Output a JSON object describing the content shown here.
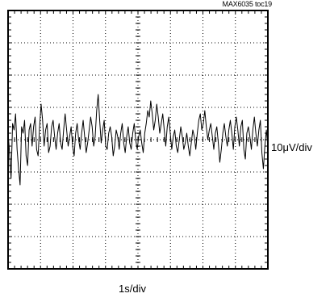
{
  "chart_data": {
    "type": "line",
    "title": "",
    "figure_id": "MAX6035 toc19",
    "xlabel": "1s/div",
    "ylabel": "10μV/div",
    "grid": true,
    "divisions": {
      "x": 8,
      "y": 8
    },
    "xlim": [
      0,
      10
    ],
    "ylim": [
      -40,
      40
    ],
    "colors": {
      "trace": "#000000",
      "grid": "#000000",
      "background": "#ffffff"
    },
    "series": [
      {
        "values": [
          2.0,
          -4.0,
          -12.0,
          5.0,
          3.0,
          8.0,
          -3.0,
          -9.0,
          -14.0,
          4.0,
          2.0,
          6.0,
          -5.0,
          -8.0,
          3.0,
          5.0,
          -2.0,
          4.0,
          7.0,
          -3.0,
          -5.0,
          4.0,
          11.0,
          6.0,
          -2.0,
          3.0,
          5.0,
          -4.0,
          -2.0,
          4.0,
          6.0,
          1.0,
          -3.0,
          2.0,
          5.0,
          -1.0,
          -3.0,
          3.0,
          8.0,
          3.0,
          -2.0,
          1.0,
          4.0,
          -2.0,
          -5.0,
          2.0,
          5.0,
          0.0,
          -3.0,
          2.0,
          6.0,
          1.0,
          -4.0,
          -1.0,
          3.0,
          7.0,
          4.0,
          -2.0,
          1.0,
          9.0,
          14.0,
          6.0,
          -1.0,
          3.0,
          6.0,
          -2.0,
          -3.0,
          2.0,
          4.0,
          1.0,
          -5.0,
          -2.0,
          3.0,
          1.0,
          -3.0,
          2.0,
          5.0,
          -1.0,
          -4.0,
          1.0,
          4.0,
          -1.0,
          -3.0,
          2.0,
          5.0,
          0.0,
          -3.0,
          1.0,
          3.0,
          -1.0,
          -4.0,
          2.0,
          5.0,
          9.0,
          7.0,
          12.0,
          8.0,
          3.0,
          6.0,
          11.0,
          7.0,
          2.0,
          5.0,
          8.0,
          3.0,
          -2.0,
          4.0,
          7.0,
          2.0,
          -3.0,
          1.0,
          3.0,
          -2.0,
          -4.0,
          0.0,
          4.0,
          1.0,
          -3.0,
          -1.0,
          2.0,
          -2.0,
          -5.0,
          -1.0,
          3.0,
          1.0,
          -3.0,
          2.0,
          6.0,
          8.0,
          3.0,
          5.0,
          9.0,
          4.0,
          0.0,
          3.0,
          5.0,
          1.0,
          -3.0,
          2.0,
          4.0,
          -1.0,
          -7.0,
          -3.0,
          2.0,
          5.0,
          1.0,
          -2.0,
          3.0,
          6.0,
          2.0,
          -3.0,
          4.0,
          7.0,
          3.0,
          -2.0,
          4.0,
          6.0,
          -3.0,
          -6.0,
          2.0,
          4.0,
          1.0,
          -3.0,
          3.0,
          7.0,
          2.0,
          -2.0,
          3.0,
          6.0,
          -4.0,
          -9.0,
          -2.0,
          3.0,
          -2.0
        ]
      }
    ]
  }
}
